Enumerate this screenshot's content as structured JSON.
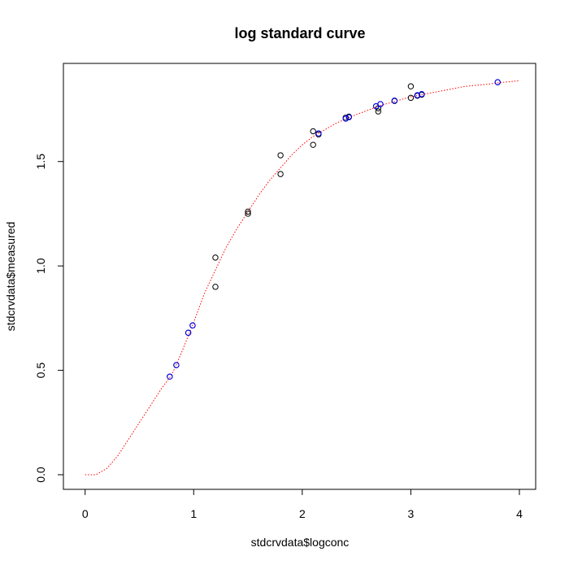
{
  "chart_data": {
    "type": "scatter",
    "title": "log standard curve",
    "xlabel": "stdcrvdata$logconc",
    "ylabel": "stdcrvdata$measured",
    "xlim": [
      -0.2,
      4.15
    ],
    "ylim": [
      -0.07,
      1.97
    ],
    "x_ticks": [
      "0",
      "1",
      "2",
      "3",
      "4"
    ],
    "y_ticks": [
      "0.0",
      "0.5",
      "1.0",
      "1.5"
    ],
    "grid": false,
    "legend": "none",
    "colors": {
      "observed": "#000000",
      "fitted": "#0000ff",
      "curve": "#ff0000"
    },
    "series": [
      {
        "kind": "observed",
        "marker": "open-circle",
        "x": [
          0.78,
          0.84,
          0.95,
          0.99,
          1.2,
          1.2,
          1.5,
          1.5,
          1.8,
          1.8,
          2.1,
          2.1,
          2.15,
          2.4,
          2.43,
          2.68,
          2.7,
          2.7,
          2.72,
          2.85,
          3.0,
          3.0,
          3.06,
          3.1,
          3.8
        ],
        "y": [
          0.47,
          0.525,
          0.68,
          0.715,
          1.04,
          0.9,
          1.26,
          1.25,
          1.53,
          1.44,
          1.645,
          1.58,
          1.63,
          1.71,
          1.715,
          1.765,
          1.74,
          1.755,
          1.775,
          1.79,
          1.86,
          1.805,
          1.815,
          1.82,
          1.88
        ]
      },
      {
        "kind": "fitted",
        "marker": "open-circle",
        "x": [
          0.78,
          0.84,
          0.95,
          0.99,
          2.15,
          2.4,
          2.43,
          2.68,
          2.72,
          2.85,
          3.06,
          3.1,
          3.8
        ],
        "y": [
          0.47,
          0.525,
          0.68,
          0.715,
          1.635,
          1.705,
          1.712,
          1.765,
          1.775,
          1.792,
          1.818,
          1.823,
          1.88
        ]
      },
      {
        "kind": "curve",
        "line": "dotted",
        "x": [
          0.0,
          0.1,
          0.2,
          0.3,
          0.4,
          0.5,
          0.6,
          0.7,
          0.8,
          0.9,
          1.0,
          1.1,
          1.2,
          1.3,
          1.4,
          1.5,
          1.6,
          1.7,
          1.8,
          1.9,
          2.0,
          2.1,
          2.2,
          2.3,
          2.4,
          2.5,
          2.6,
          2.7,
          2.8,
          2.9,
          3.0,
          3.1,
          3.2,
          3.3,
          3.4,
          3.5,
          3.6,
          3.7,
          3.8,
          3.9,
          4.0
        ],
        "y": [
          0.0,
          0.0,
          0.03,
          0.09,
          0.17,
          0.25,
          0.33,
          0.41,
          0.48,
          0.6,
          0.73,
          0.87,
          0.98,
          1.09,
          1.18,
          1.26,
          1.34,
          1.41,
          1.47,
          1.53,
          1.58,
          1.62,
          1.65,
          1.68,
          1.705,
          1.725,
          1.745,
          1.765,
          1.78,
          1.795,
          1.81,
          1.82,
          1.83,
          1.84,
          1.85,
          1.86,
          1.865,
          1.87,
          1.877,
          1.882,
          1.887
        ]
      }
    ]
  }
}
